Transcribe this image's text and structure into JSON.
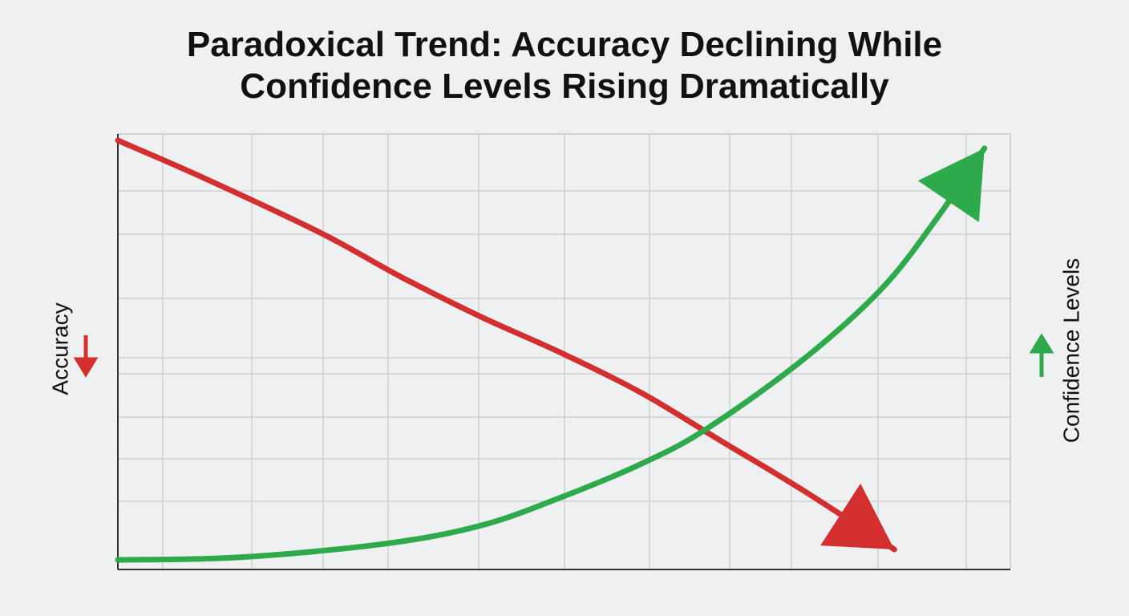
{
  "chart_data": {
    "type": "line",
    "title": [
      "Paradoxical Trend: Accuracy Declining While",
      "Confidence Levels Rising Dramatically"
    ],
    "xlim": [
      0,
      100
    ],
    "ylim": [
      0,
      100
    ],
    "grid": true,
    "series": [
      {
        "name": "Accuracy",
        "color": "#d32f2f",
        "x": [
          0,
          9.3,
          22.7,
          31.7,
          40.7,
          49.7,
          58.7,
          67.6,
          76.6,
          87
        ],
        "values": [
          98.5,
          90.2,
          77.3,
          67.2,
          58,
          49.7,
          40.5,
          29.5,
          18.4,
          4.6
        ]
      },
      {
        "name": "Confidence Levels",
        "color": "#2eaa4a",
        "x": [
          0,
          13.7,
          29.9,
          40.7,
          49.7,
          58.7,
          65.9,
          76.6,
          85.6,
          91.9,
          97.1
        ],
        "values": [
          2.2,
          2.8,
          5.9,
          10.1,
          16.6,
          24.3,
          32.2,
          47.9,
          64.5,
          81,
          96.7
        ]
      }
    ]
  }
}
